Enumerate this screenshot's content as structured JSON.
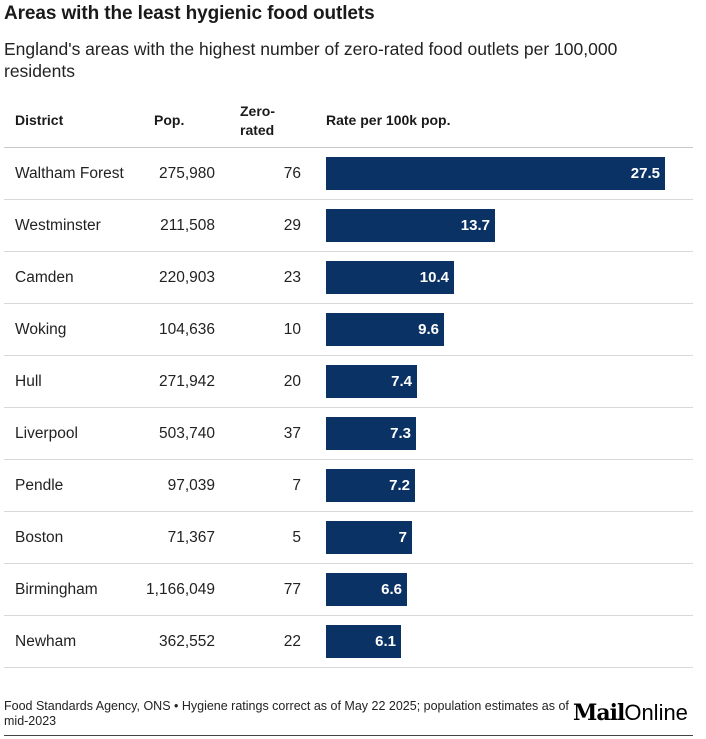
{
  "title": "Areas with the least hygienic food outlets",
  "subtitle": "England's areas with the highest number of zero-rated food outlets per 100,000 residents",
  "headers": {
    "district": "District",
    "pop": "Pop.",
    "zero_rated": "Zero-rated",
    "rate": "Rate per 100k pop."
  },
  "footer": "Food Standards Agency, ONS • Hygiene ratings correct as of May 22 2025; population estimates as of mid-2023",
  "logo": {
    "mail": "Mail",
    "online": "Online"
  },
  "colors": {
    "bar": "#0b3264",
    "bar_label": "#ffffff"
  },
  "chart_data": {
    "type": "table",
    "columns": [
      "District",
      "Pop.",
      "Zero-rated",
      "Rate per 100k pop."
    ],
    "rows": [
      {
        "district": "Waltham Forest",
        "pop": "275,980",
        "zero_rated": "76",
        "rate": 27.5
      },
      {
        "district": "Westminster",
        "pop": "211,508",
        "zero_rated": "29",
        "rate": 13.7
      },
      {
        "district": "Camden",
        "pop": "220,903",
        "zero_rated": "23",
        "rate": 10.4
      },
      {
        "district": "Woking",
        "pop": "104,636",
        "zero_rated": "10",
        "rate": 9.6
      },
      {
        "district": "Hull",
        "pop": "271,942",
        "zero_rated": "20",
        "rate": 7.4
      },
      {
        "district": "Liverpool",
        "pop": "503,740",
        "zero_rated": "37",
        "rate": 7.3
      },
      {
        "district": "Pendle",
        "pop": "97,039",
        "zero_rated": "7",
        "rate": 7.2
      },
      {
        "district": "Boston",
        "pop": "71,367",
        "zero_rated": "5",
        "rate": 7
      },
      {
        "district": "Birmingham",
        "pop": "1,166,049",
        "zero_rated": "77",
        "rate": 6.6
      },
      {
        "district": "Newham",
        "pop": "362,552",
        "zero_rated": "22",
        "rate": 6.1
      }
    ],
    "rate_max": 27.5
  }
}
